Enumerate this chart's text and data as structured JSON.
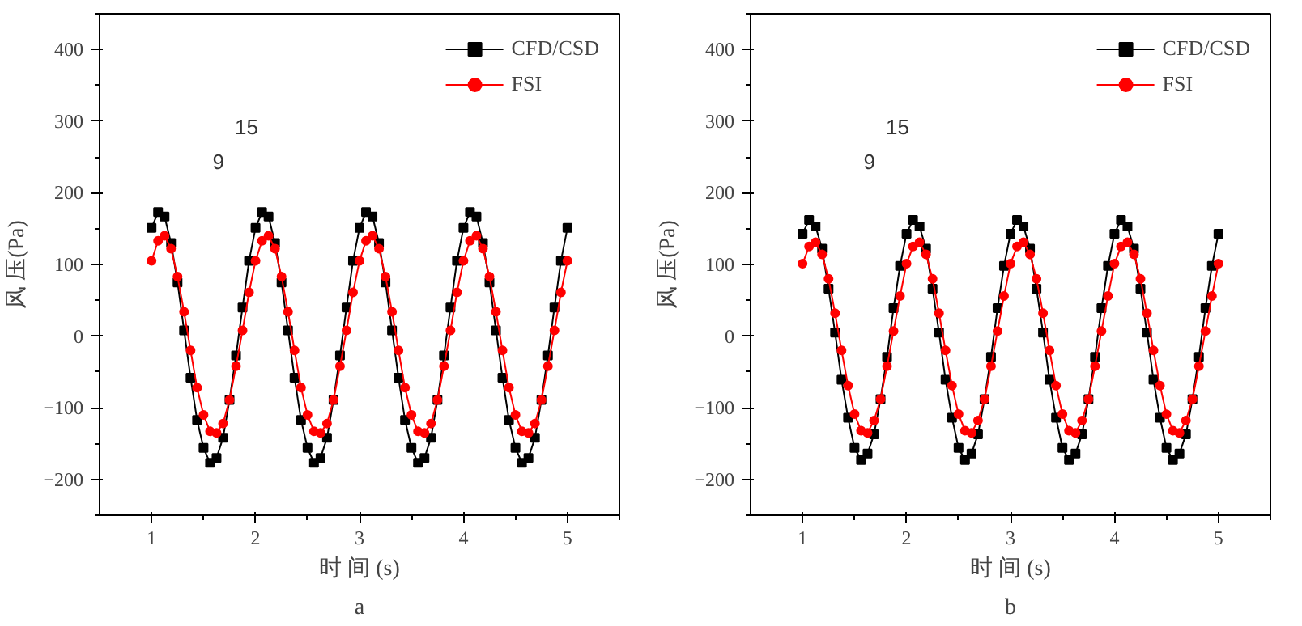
{
  "chart_data": [
    {
      "type": "line",
      "xlabel": "时 间 (s)",
      "ylabel": "风 压(Pa)",
      "annotations": [
        "a",
        "15",
        "9"
      ],
      "x": [
        1,
        1.0625,
        1.125,
        1.1875,
        1.25,
        1.3125,
        1.375,
        1.4375,
        1.5,
        1.5625,
        1.625,
        1.6875,
        1.75,
        1.8125,
        1.875,
        1.9375,
        2,
        2.0625,
        2.125,
        2.1875,
        2.25,
        2.3125,
        2.375,
        2.4375,
        2.5,
        2.5625,
        2.625,
        2.6875,
        2.75,
        2.8125,
        2.875,
        2.9375,
        3,
        3.0625,
        3.125,
        3.1875,
        3.25,
        3.3125,
        3.375,
        3.4375,
        3.5,
        3.5625,
        3.625,
        3.6875,
        3.75,
        3.8125,
        3.875,
        3.9375,
        4,
        4.0625,
        4.125,
        4.1875,
        4.25,
        4.3125,
        4.375,
        4.4375,
        4.5,
        4.5625,
        4.625,
        4.6875,
        4.75,
        4.8125,
        4.875,
        4.9375,
        5
      ],
      "series": [
        {
          "name": "CFD/CSD",
          "color": "#000000",
          "marker": "square",
          "values": [
            151,
            173,
            167,
            130,
            75,
            8,
            -58,
            -117,
            -156,
            -177,
            -170,
            -142,
            -89,
            -27,
            40,
            105,
            151,
            173,
            167,
            130,
            75,
            8,
            -58,
            -117,
            -156,
            -177,
            -170,
            -142,
            -89,
            -27,
            40,
            105,
            151,
            173,
            167,
            130,
            75,
            8,
            -58,
            -117,
            -156,
            -177,
            -170,
            -142,
            -89,
            -27,
            40,
            105,
            151,
            173,
            167,
            130,
            75,
            8,
            -58,
            -117,
            -156,
            -177,
            -170,
            -142,
            -89,
            -27,
            40,
            105,
            151
          ]
        },
        {
          "name": "FSI",
          "color": "#ff0000",
          "marker": "circle",
          "values": [
            105,
            133,
            140,
            122,
            83,
            34,
            -20,
            -72,
            -110,
            -133,
            -135,
            -122,
            -89,
            -42,
            8,
            61,
            105,
            133,
            140,
            122,
            83,
            34,
            -20,
            -72,
            -110,
            -133,
            -135,
            -122,
            -89,
            -42,
            8,
            61,
            105,
            133,
            140,
            122,
            83,
            34,
            -20,
            -72,
            -110,
            -133,
            -135,
            -122,
            -89,
            -42,
            8,
            61,
            105,
            133,
            140,
            122,
            83,
            34,
            -20,
            -72,
            -110,
            -133,
            -135,
            -122,
            -89,
            -42,
            8,
            61,
            105
          ]
        }
      ],
      "xlim": [
        0.5,
        5.5
      ],
      "xticks": [
        1,
        2,
        3,
        4,
        5
      ],
      "ylim": [
        -250,
        450
      ],
      "yticks": [
        -200,
        -100,
        0,
        100,
        200,
        300,
        400
      ],
      "legend": "top right",
      "grid": false
    },
    {
      "type": "line",
      "xlabel": "时 间 (s)",
      "ylabel": "风 压(Pa)",
      "annotations": [
        "b",
        "15",
        "9"
      ],
      "x": [
        1,
        1.0625,
        1.125,
        1.1875,
        1.25,
        1.3125,
        1.375,
        1.4375,
        1.5,
        1.5625,
        1.625,
        1.6875,
        1.75,
        1.8125,
        1.875,
        1.9375,
        2,
        2.0625,
        2.125,
        2.1875,
        2.25,
        2.3125,
        2.375,
        2.4375,
        2.5,
        2.5625,
        2.625,
        2.6875,
        2.75,
        2.8125,
        2.875,
        2.9375,
        3,
        3.0625,
        3.125,
        3.1875,
        3.25,
        3.3125,
        3.375,
        3.4375,
        3.5,
        3.5625,
        3.625,
        3.6875,
        3.75,
        3.8125,
        3.875,
        3.9375,
        4,
        4.0625,
        4.125,
        4.1875,
        4.25,
        4.3125,
        4.375,
        4.4375,
        4.5,
        4.5625,
        4.625,
        4.6875,
        4.75,
        4.8125,
        4.875,
        4.9375,
        5
      ],
      "series": [
        {
          "name": "CFD/CSD",
          "color": "#000000",
          "marker": "square",
          "values": [
            143,
            162,
            153,
            122,
            66,
            5,
            -61,
            -114,
            -156,
            -173,
            -164,
            -137,
            -88,
            -29,
            39,
            98,
            143,
            162,
            153,
            122,
            66,
            5,
            -61,
            -114,
            -156,
            -173,
            -164,
            -137,
            -88,
            -29,
            39,
            98,
            143,
            162,
            153,
            122,
            66,
            5,
            -61,
            -114,
            -156,
            -173,
            -164,
            -137,
            -88,
            -29,
            39,
            98,
            143,
            162,
            153,
            122,
            66,
            5,
            -61,
            -114,
            -156,
            -173,
            -164,
            -137,
            -88,
            -29,
            39,
            98,
            143
          ]
        },
        {
          "name": "FSI",
          "color": "#ff0000",
          "marker": "circle",
          "values": [
            101,
            125,
            131,
            114,
            80,
            32,
            -20,
            -69,
            -109,
            -132,
            -135,
            -118,
            -88,
            -42,
            7,
            56,
            101,
            125,
            131,
            114,
            80,
            32,
            -20,
            -69,
            -109,
            -132,
            -135,
            -118,
            -88,
            -42,
            7,
            56,
            101,
            125,
            131,
            114,
            80,
            32,
            -20,
            -69,
            -109,
            -132,
            -135,
            -118,
            -88,
            -42,
            7,
            56,
            101,
            125,
            131,
            114,
            80,
            32,
            -20,
            -69,
            -109,
            -132,
            -135,
            -118,
            -88,
            -42,
            7,
            56,
            101
          ]
        }
      ],
      "xlim": [
        0.5,
        5.5
      ],
      "xticks": [
        1,
        2,
        3,
        4,
        5
      ],
      "ylim": [
        -250,
        450
      ],
      "yticks": [
        -200,
        -100,
        0,
        100,
        200,
        300,
        400
      ],
      "legend": "top right",
      "grid": false
    }
  ]
}
